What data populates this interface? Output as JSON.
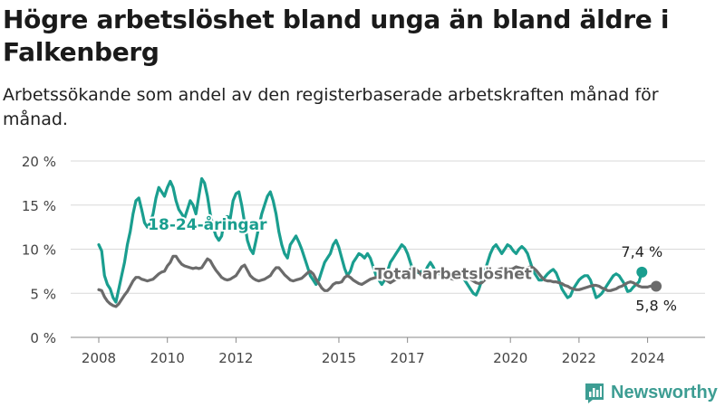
{
  "title": "Högre arbetslöshet bland unga än bland äldre i Falkenberg",
  "subtitle": "Arbetssökande som andel av den registerbaserade arbetskraften månad för månad.",
  "brand": {
    "name": "Newsworthy",
    "icon": "newsworthy-logo-icon",
    "color": "#3d9d93"
  },
  "chart_data": {
    "type": "line",
    "x_start": "2008-01",
    "x_end": "2024-12",
    "x_ticks": [
      "2008",
      "2010",
      "2012",
      "2015",
      "2017",
      "2020",
      "2022",
      "2024"
    ],
    "y_ticks": [
      "0 %",
      "5 %",
      "10 %",
      "15 %",
      "20 %"
    ],
    "ylim": [
      0,
      20
    ],
    "grid": true,
    "series": [
      {
        "name": "18-24-åringar",
        "color": "#1a9e8f",
        "end_label": "7,4 %",
        "values": [
          10.5,
          9.8,
          7,
          6,
          5.5,
          4.5,
          4,
          5.5,
          7,
          8.5,
          10.5,
          12,
          14,
          15.5,
          15.8,
          14.5,
          13,
          12.5,
          13,
          14,
          15.8,
          17,
          16.5,
          16,
          17,
          17.7,
          17,
          15.5,
          14.5,
          14,
          13.5,
          14.5,
          15.5,
          15,
          14,
          16,
          18,
          17.5,
          16,
          14,
          12.5,
          11.5,
          11,
          11.5,
          13.5,
          13.7,
          13.5,
          15.5,
          16.3,
          16.5,
          15,
          13,
          11,
          10,
          9.5,
          11,
          12.5,
          14,
          15,
          16,
          16.5,
          15.5,
          14,
          12,
          10.5,
          9.5,
          9,
          10.5,
          11,
          11.5,
          10.8,
          10,
          9,
          8,
          7,
          6.5,
          6,
          6.5,
          7.5,
          8.5,
          9,
          9.5,
          10.5,
          11,
          10.2,
          9,
          7.8,
          7,
          7.5,
          8.5,
          9,
          9.5,
          9.3,
          9,
          9.5,
          9,
          8,
          7,
          6.5,
          6,
          6.5,
          7.5,
          8.5,
          9,
          9.5,
          10,
          10.5,
          10.2,
          9.5,
          8.5,
          7.5,
          7.5,
          7.3,
          7.5,
          7.3,
          8,
          8.5,
          8,
          7.3,
          7.3,
          7,
          6.8,
          6.8,
          7,
          7.2,
          7.3,
          7.3,
          7,
          6.5,
          6,
          5.5,
          5,
          4.8,
          5.5,
          6.5,
          7.5,
          8.5,
          9.5,
          10.2,
          10.5,
          10,
          9.5,
          10,
          10.5,
          10.3,
          9.8,
          9.5,
          10,
          10.3,
          10,
          9.5,
          8.5,
          7.5,
          7,
          6.5,
          6.5,
          6.8,
          7.2,
          7.5,
          7.7,
          7.3,
          6.5,
          5.5,
          5,
          4.5,
          4.7,
          5.5,
          6,
          6.5,
          6.8,
          7,
          7,
          6.5,
          5.5,
          4.5,
          4.7,
          5,
          5.5,
          6,
          6.5,
          7,
          7.2,
          7,
          6.5,
          6,
          5.2,
          5.3,
          5.7,
          6,
          6.3,
          7.4
        ]
      },
      {
        "name": "Total arbetslöshet",
        "color": "#6b6b6b",
        "end_label": "5,8 %",
        "values": [
          5.4,
          5.3,
          4.6,
          4.1,
          3.8,
          3.6,
          3.5,
          3.8,
          4.3,
          4.8,
          5.2,
          5.8,
          6.4,
          6.8,
          6.8,
          6.6,
          6.5,
          6.4,
          6.5,
          6.6,
          6.9,
          7.2,
          7.4,
          7.5,
          8.1,
          8.5,
          9.2,
          9.2,
          8.7,
          8.3,
          8.1,
          8,
          7.9,
          7.8,
          7.9,
          7.8,
          7.9,
          8.4,
          8.9,
          8.7,
          8.1,
          7.6,
          7.2,
          6.8,
          6.6,
          6.5,
          6.6,
          6.8,
          7,
          7.5,
          8,
          8.2,
          7.6,
          7,
          6.7,
          6.5,
          6.4,
          6.5,
          6.6,
          6.8,
          7,
          7.5,
          7.9,
          7.9,
          7.5,
          7.1,
          6.8,
          6.5,
          6.4,
          6.5,
          6.6,
          6.7,
          7,
          7.3,
          7.5,
          7.2,
          6.6,
          6.1,
          5.6,
          5.3,
          5.3,
          5.6,
          6,
          6.2,
          6.2,
          6.3,
          6.8,
          7,
          6.8,
          6.5,
          6.3,
          6.1,
          6,
          6.2,
          6.4,
          6.6,
          6.7,
          6.8,
          6.9,
          6.8,
          6.6,
          6.4,
          6.2,
          6.4,
          6.6,
          6.8,
          7,
          7.3,
          7.5,
          7.7,
          7.8,
          7.7,
          7.4,
          7,
          6.9,
          6.9,
          7,
          7.1,
          7.2,
          7.3,
          7.1,
          7,
          6.9,
          6.7,
          6.6,
          6.7,
          6.8,
          6.9,
          6.9,
          6.8,
          6.6,
          6.4,
          6.2,
          6.1,
          6.2,
          6.5,
          6.8,
          7,
          7.3,
          7.5,
          7.7,
          7.8,
          7.9,
          7.8,
          7.7,
          7.8,
          8,
          7.9,
          7.8,
          7.8,
          7.9,
          8,
          7.9,
          7.6,
          7.2,
          6.8,
          6.5,
          6.4,
          6.4,
          6.3,
          6.3,
          6.2,
          6.1,
          5.9,
          5.8,
          5.6,
          5.5,
          5.4,
          5.4,
          5.5,
          5.6,
          5.7,
          5.8,
          5.9,
          5.9,
          5.8,
          5.6,
          5.5,
          5.3,
          5.3,
          5.4,
          5.5,
          5.7,
          5.8,
          6,
          6.2,
          6.3,
          6.2,
          6,
          5.8,
          5.7,
          5.7,
          5.7,
          5.8,
          5.8,
          5.8
        ]
      }
    ],
    "annotations": [
      {
        "text": "18-24-åringar",
        "series": 0,
        "month_index": 38,
        "value": 12.2
      },
      {
        "text": "Total arbetslöshet",
        "series": 1,
        "month_index": 124,
        "value": 6.6
      }
    ]
  }
}
